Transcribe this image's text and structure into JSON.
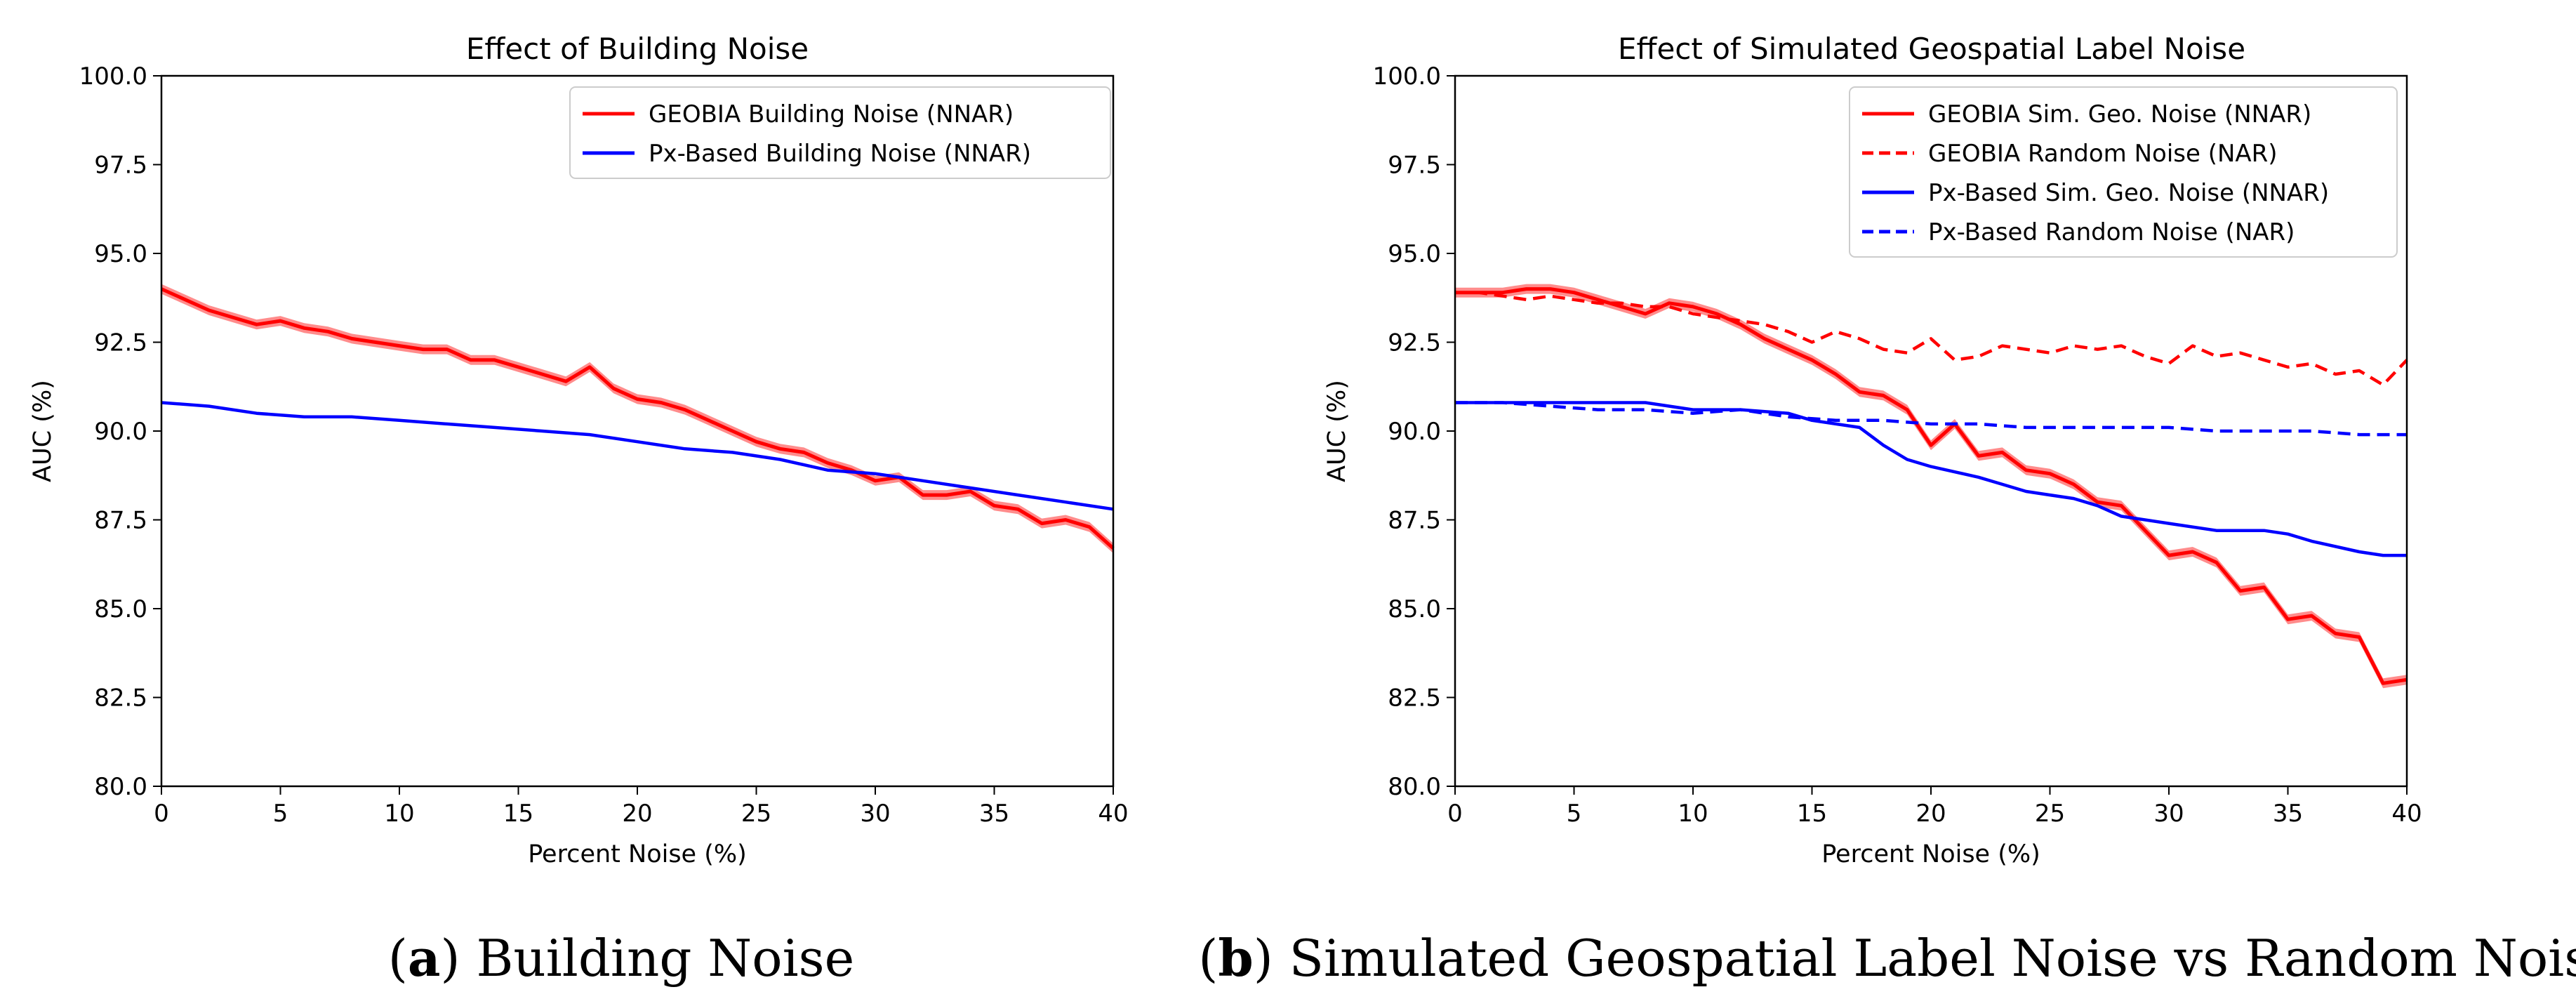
{
  "chart_data": [
    {
      "type": "line",
      "title": "Effect of Building Noise",
      "xlabel": "Percent Noise (%)",
      "ylabel": "AUC (%)",
      "xlim": [
        0,
        40
      ],
      "ylim": [
        80,
        100
      ],
      "xticks": [
        "0",
        "5",
        "10",
        "15",
        "20",
        "25",
        "30",
        "35",
        "40"
      ],
      "yticks": [
        "80.0",
        "82.5",
        "85.0",
        "87.5",
        "90.0",
        "92.5",
        "95.0",
        "97.5",
        "100.0"
      ],
      "legend_position": "top-right",
      "series": [
        {
          "name": "GEOBIA Building Noise (NNAR)",
          "color": "#ff0000",
          "style": "solid",
          "band": true,
          "x": [
            0,
            1,
            2,
            3,
            4,
            5,
            6,
            7,
            8,
            9,
            10,
            11,
            12,
            13,
            14,
            15,
            16,
            17,
            18,
            19,
            20,
            21,
            22,
            23,
            24,
            25,
            26,
            27,
            28,
            29,
            30,
            31,
            32,
            33,
            34,
            35,
            36,
            37,
            38,
            39,
            40
          ],
          "y": [
            94.0,
            93.7,
            93.4,
            93.2,
            93.0,
            93.1,
            92.9,
            92.8,
            92.6,
            92.5,
            92.4,
            92.3,
            92.3,
            92.0,
            92.0,
            91.8,
            91.6,
            91.4,
            91.8,
            91.2,
            90.9,
            90.8,
            90.6,
            90.3,
            90.0,
            89.7,
            89.5,
            89.4,
            89.1,
            88.9,
            88.6,
            88.7,
            88.2,
            88.2,
            88.3,
            87.9,
            87.8,
            87.4,
            87.5,
            87.3,
            86.7
          ]
        },
        {
          "name": "Px-Based Building Noise (NNAR)",
          "color": "#0000ff",
          "style": "solid",
          "band": false,
          "x": [
            0,
            2,
            4,
            6,
            8,
            10,
            12,
            14,
            16,
            18,
            20,
            22,
            24,
            26,
            28,
            30,
            32,
            34,
            36,
            38,
            40
          ],
          "y": [
            90.8,
            90.7,
            90.5,
            90.4,
            90.4,
            90.3,
            90.2,
            90.1,
            90.0,
            89.9,
            89.7,
            89.5,
            89.4,
            89.2,
            88.9,
            88.8,
            88.6,
            88.4,
            88.2,
            88.0,
            87.8
          ]
        }
      ]
    },
    {
      "type": "line",
      "title": "Effect of Simulated Geospatial Label Noise",
      "xlabel": "Percent Noise (%)",
      "ylabel": "AUC (%)",
      "xlim": [
        0,
        40
      ],
      "ylim": [
        80,
        100
      ],
      "xticks": [
        "0",
        "5",
        "10",
        "15",
        "20",
        "25",
        "30",
        "35",
        "40"
      ],
      "yticks": [
        "80.0",
        "82.5",
        "85.0",
        "87.5",
        "90.0",
        "92.5",
        "95.0",
        "97.5",
        "100.0"
      ],
      "legend_position": "top-right",
      "series": [
        {
          "name": "GEOBIA Sim. Geo. Noise (NNAR)",
          "color": "#ff0000",
          "style": "solid",
          "band": true,
          "x": [
            0,
            1,
            2,
            3,
            4,
            5,
            6,
            7,
            8,
            9,
            10,
            11,
            12,
            13,
            14,
            15,
            16,
            17,
            18,
            19,
            20,
            21,
            22,
            23,
            24,
            25,
            26,
            27,
            28,
            29,
            30,
            31,
            32,
            33,
            34,
            35,
            36,
            37,
            38,
            39,
            40
          ],
          "y": [
            93.9,
            93.9,
            93.9,
            94.0,
            94.0,
            93.9,
            93.7,
            93.5,
            93.3,
            93.6,
            93.5,
            93.3,
            93.0,
            92.6,
            92.3,
            92.0,
            91.6,
            91.1,
            91.0,
            90.6,
            89.6,
            90.2,
            89.3,
            89.4,
            88.9,
            88.8,
            88.5,
            88.0,
            87.9,
            87.2,
            86.5,
            86.6,
            86.3,
            85.5,
            85.6,
            84.7,
            84.8,
            84.3,
            84.2,
            82.9,
            83.0
          ]
        },
        {
          "name": "GEOBIA Random Noise (NAR)",
          "color": "#ff0000",
          "style": "dashed",
          "band": false,
          "x": [
            0,
            1,
            2,
            3,
            4,
            5,
            6,
            7,
            8,
            9,
            10,
            11,
            12,
            13,
            14,
            15,
            16,
            17,
            18,
            19,
            20,
            21,
            22,
            23,
            24,
            25,
            26,
            27,
            28,
            29,
            30,
            31,
            32,
            33,
            34,
            35,
            36,
            37,
            38,
            39,
            40
          ],
          "y": [
            93.9,
            93.9,
            93.8,
            93.7,
            93.8,
            93.7,
            93.6,
            93.6,
            93.5,
            93.5,
            93.3,
            93.2,
            93.1,
            93.0,
            92.8,
            92.5,
            92.8,
            92.6,
            92.3,
            92.2,
            92.6,
            92.0,
            92.1,
            92.4,
            92.3,
            92.2,
            92.4,
            92.3,
            92.4,
            92.1,
            91.9,
            92.4,
            92.1,
            92.2,
            92.0,
            91.8,
            91.9,
            91.6,
            91.7,
            91.3,
            92.0
          ]
        },
        {
          "name": "Px-Based Sim. Geo. Noise (NNAR)",
          "color": "#0000ff",
          "style": "solid",
          "band": false,
          "x": [
            0,
            2,
            4,
            6,
            8,
            10,
            12,
            14,
            15,
            17,
            18,
            19,
            20,
            22,
            23,
            24,
            25,
            26,
            27,
            28,
            30,
            32,
            34,
            35,
            36,
            38,
            39,
            40
          ],
          "y": [
            90.8,
            90.8,
            90.8,
            90.8,
            90.8,
            90.6,
            90.6,
            90.5,
            90.3,
            90.1,
            89.6,
            89.2,
            89.0,
            88.7,
            88.5,
            88.3,
            88.2,
            88.1,
            87.9,
            87.6,
            87.4,
            87.2,
            87.2,
            87.1,
            86.9,
            86.6,
            86.5,
            86.5
          ]
        },
        {
          "name": "Px-Based Random Noise (NAR)",
          "color": "#0000ff",
          "style": "dashed",
          "band": false,
          "x": [
            0,
            2,
            4,
            6,
            8,
            10,
            12,
            14,
            16,
            18,
            20,
            22,
            24,
            26,
            28,
            30,
            32,
            34,
            36,
            38,
            40
          ],
          "y": [
            90.8,
            90.8,
            90.7,
            90.6,
            90.6,
            90.5,
            90.6,
            90.4,
            90.3,
            90.3,
            90.2,
            90.2,
            90.1,
            90.1,
            90.1,
            90.1,
            90.0,
            90.0,
            90.0,
            89.9,
            89.9
          ]
        }
      ]
    }
  ],
  "captions": [
    {
      "label": "a",
      "text": " Building Noise"
    },
    {
      "label": "b",
      "text": " Simulated Geospatial Label Noise vs Random Noise"
    }
  ]
}
